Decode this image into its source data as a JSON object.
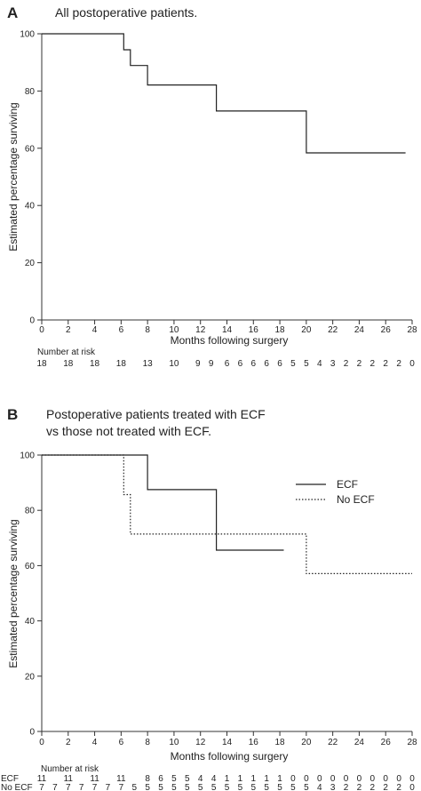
{
  "chart_data": [
    {
      "type": "line",
      "panel_label": "A",
      "title": "All postoperative patients.",
      "xlabel": "Months following surgery",
      "ylabel": "Estimated percentage surviving",
      "xlim": [
        0,
        28
      ],
      "ylim": [
        0,
        100
      ],
      "xticks": [
        0,
        2,
        4,
        6,
        8,
        10,
        12,
        14,
        16,
        18,
        20,
        22,
        24,
        26,
        28
      ],
      "yticks": [
        0,
        20,
        40,
        60,
        80,
        100
      ],
      "grid": false,
      "series": [
        {
          "style": "solid",
          "steps": [
            [
              0,
              100
            ],
            [
              6.2,
              100
            ],
            [
              6.2,
              94.4
            ],
            [
              6.7,
              94.4
            ],
            [
              6.7,
              88.9
            ],
            [
              8,
              88.9
            ],
            [
              8,
              82.1
            ],
            [
              13.2,
              82.1
            ],
            [
              13.2,
              73
            ],
            [
              20,
              73
            ],
            [
              20,
              58.4
            ],
            [
              27.5,
              58.4
            ]
          ]
        }
      ],
      "risk_table": {
        "header": "Number at risk",
        "rows": [
          {
            "label": "",
            "entries": [
              {
                "x": 0,
                "n": "18"
              },
              {
                "x": 2,
                "n": "18"
              },
              {
                "x": 4,
                "n": "18"
              },
              {
                "x": 6,
                "n": "18"
              },
              {
                "x": 8,
                "n": "13"
              },
              {
                "x": 10,
                "n": "10"
              },
              {
                "x": 11.8,
                "n": "9"
              },
              {
                "x": 12.8,
                "n": "9"
              },
              {
                "x": 14,
                "n": "6"
              },
              {
                "x": 15,
                "n": "6"
              },
              {
                "x": 16,
                "n": "6"
              },
              {
                "x": 17,
                "n": "6"
              },
              {
                "x": 18,
                "n": "6"
              },
              {
                "x": 19,
                "n": "5"
              },
              {
                "x": 20,
                "n": "5"
              },
              {
                "x": 21,
                "n": "4"
              },
              {
                "x": 22,
                "n": "3"
              },
              {
                "x": 23,
                "n": "2"
              },
              {
                "x": 24,
                "n": "2"
              },
              {
                "x": 25,
                "n": "2"
              },
              {
                "x": 26,
                "n": "2"
              },
              {
                "x": 27,
                "n": "2"
              },
              {
                "x": 28,
                "n": "0"
              }
            ]
          }
        ]
      }
    },
    {
      "type": "line",
      "panel_label": "B",
      "title": "Postoperative patients treated with ECF\nvs those not treated with ECF.",
      "xlabel": "Months following surgery",
      "ylabel": "Estimated percentage surviving",
      "xlim": [
        0,
        28
      ],
      "ylim": [
        0,
        100
      ],
      "xticks": [
        0,
        2,
        4,
        6,
        8,
        10,
        12,
        14,
        16,
        18,
        20,
        22,
        24,
        26,
        28
      ],
      "yticks": [
        0,
        20,
        40,
        60,
        80,
        100
      ],
      "grid": false,
      "legend_position": "top-right",
      "series": [
        {
          "name": "ECF",
          "style": "solid",
          "steps": [
            [
              0,
              100
            ],
            [
              8,
              100
            ],
            [
              8,
              87.5
            ],
            [
              13.2,
              87.5
            ],
            [
              13.2,
              65.6
            ],
            [
              18.3,
              65.6
            ]
          ]
        },
        {
          "name": "No ECF",
          "style": "dotted",
          "steps": [
            [
              0,
              100
            ],
            [
              6.2,
              100
            ],
            [
              6.2,
              85.7
            ],
            [
              6.7,
              85.7
            ],
            [
              6.7,
              71.4
            ],
            [
              20,
              71.4
            ],
            [
              20,
              57.1
            ],
            [
              28,
              57.1
            ]
          ]
        }
      ],
      "risk_table": {
        "header": "Number at risk",
        "rows": [
          {
            "label": "ECF",
            "entries": [
              {
                "x": 0,
                "n": "11"
              },
              {
                "x": 2,
                "n": "11"
              },
              {
                "x": 4,
                "n": "11"
              },
              {
                "x": 6,
                "n": "11"
              },
              {
                "x": 8,
                "n": "8"
              },
              {
                "x": 9,
                "n": "6"
              },
              {
                "x": 10,
                "n": "5"
              },
              {
                "x": 11,
                "n": "5"
              },
              {
                "x": 12,
                "n": "4"
              },
              {
                "x": 13,
                "n": "4"
              },
              {
                "x": 14,
                "n": "1"
              },
              {
                "x": 15,
                "n": "1"
              },
              {
                "x": 16,
                "n": "1"
              },
              {
                "x": 17,
                "n": "1"
              },
              {
                "x": 18,
                "n": "1"
              },
              {
                "x": 19,
                "n": "0"
              },
              {
                "x": 20,
                "n": "0"
              },
              {
                "x": 21,
                "n": "0"
              },
              {
                "x": 22,
                "n": "0"
              },
              {
                "x": 23,
                "n": "0"
              },
              {
                "x": 24,
                "n": "0"
              },
              {
                "x": 25,
                "n": "0"
              },
              {
                "x": 26,
                "n": "0"
              },
              {
                "x": 27,
                "n": "0"
              },
              {
                "x": 28,
                "n": "0"
              }
            ]
          },
          {
            "label": "No ECF",
            "entries": [
              {
                "x": 0,
                "n": "7"
              },
              {
                "x": 1,
                "n": "7"
              },
              {
                "x": 2,
                "n": "7"
              },
              {
                "x": 3,
                "n": "7"
              },
              {
                "x": 4,
                "n": "7"
              },
              {
                "x": 5,
                "n": "7"
              },
              {
                "x": 6,
                "n": "7"
              },
              {
                "x": 7,
                "n": "5"
              },
              {
                "x": 8,
                "n": "5"
              },
              {
                "x": 9,
                "n": "5"
              },
              {
                "x": 10,
                "n": "5"
              },
              {
                "x": 11,
                "n": "5"
              },
              {
                "x": 12,
                "n": "5"
              },
              {
                "x": 13,
                "n": "5"
              },
              {
                "x": 14,
                "n": "5"
              },
              {
                "x": 15,
                "n": "5"
              },
              {
                "x": 16,
                "n": "5"
              },
              {
                "x": 17,
                "n": "5"
              },
              {
                "x": 18,
                "n": "5"
              },
              {
                "x": 19,
                "n": "5"
              },
              {
                "x": 20,
                "n": "5"
              },
              {
                "x": 21,
                "n": "4"
              },
              {
                "x": 22,
                "n": "3"
              },
              {
                "x": 23,
                "n": "2"
              },
              {
                "x": 24,
                "n": "2"
              },
              {
                "x": 25,
                "n": "2"
              },
              {
                "x": 26,
                "n": "2"
              },
              {
                "x": 27,
                "n": "2"
              },
              {
                "x": 28,
                "n": "0"
              }
            ]
          }
        ]
      }
    }
  ]
}
